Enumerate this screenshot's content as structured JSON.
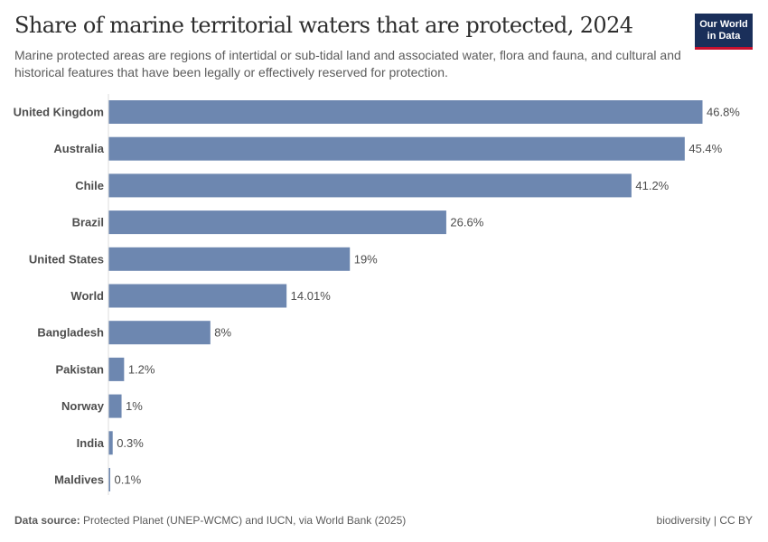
{
  "header": {
    "title": "Share of marine territorial waters that are protected, 2024",
    "subtitle": "Marine protected areas are regions of intertidal or sub-tidal land and associated water, flora and fauna, and cultural and historical features that have been legally or effectively reserved for protection.",
    "logo_line1": "Our World",
    "logo_line2": "in Data"
  },
  "footer": {
    "source_label": "Data source:",
    "source_text": " Protected Planet (UNEP-WCMC) and IUCN, via World Bank (2025)",
    "right_text": "biodiversity | CC BY"
  },
  "colors": {
    "bar": "#6d87b0",
    "label": "#4d4d4d",
    "value": "#4d4d4d",
    "axis": "#dddddd",
    "logo_bg": "#1a2f5a",
    "logo_accent": "#c8102e"
  },
  "chart_data": {
    "type": "bar",
    "orientation": "horizontal",
    "title": "Share of marine territorial waters that are protected, 2024",
    "xlabel": "",
    "ylabel": "",
    "unit": "%",
    "grid": false,
    "xlim": [
      0,
      46.8
    ],
    "categories": [
      "United Kingdom",
      "Australia",
      "Chile",
      "Brazil",
      "United States",
      "World",
      "Bangladesh",
      "Pakistan",
      "Norway",
      "India",
      "Maldives"
    ],
    "values": [
      46.8,
      45.4,
      41.2,
      26.6,
      19,
      14.01,
      8,
      1.2,
      1,
      0.3,
      0.1
    ],
    "value_labels": [
      "46.8%",
      "45.4%",
      "41.2%",
      "26.6%",
      "19%",
      "14.01%",
      "8%",
      "1.2%",
      "1%",
      "0.3%",
      "0.1%"
    ]
  }
}
